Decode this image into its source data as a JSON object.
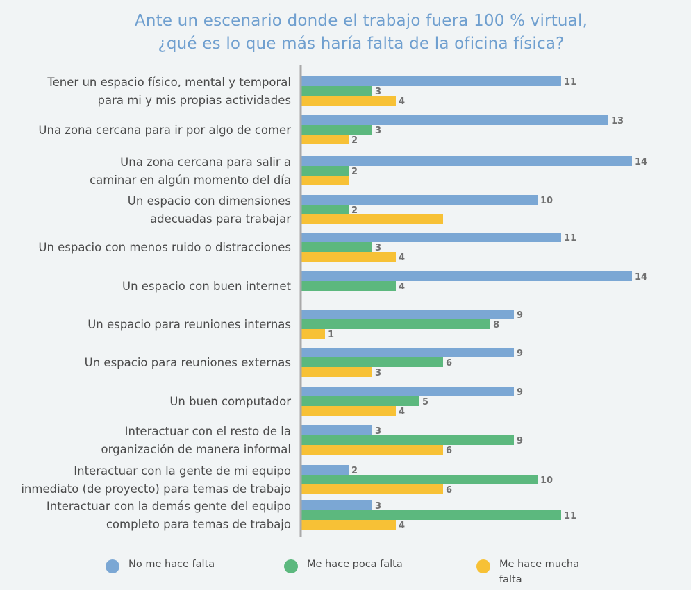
{
  "title": {
    "line1": "Ante un escenario donde el trabajo fuera 100 % virtual,",
    "line2": "¿qué es lo que más haría falta de la oficina física?"
  },
  "chart_data": {
    "type": "bar",
    "orientation": "horizontal",
    "title": "Ante un escenario donde el trabajo fuera 100 % virtual, ¿qué es lo que más haría falta de la oficina física?",
    "categories": [
      [
        "Tener un espacio físico, mental y temporal",
        "para mi y mis propias actividades"
      ],
      [
        "Una zona cercana para ir por algo de comer"
      ],
      [
        "Una zona cercana para salir a",
        "caminar en algún momento del día"
      ],
      [
        "Un espacio con dimensiones",
        "adecuadas para trabajar"
      ],
      [
        "Un espacio con menos ruido o distracciones"
      ],
      [
        "Un espacio con buen internet"
      ],
      [
        "Un espacio para reuniones internas"
      ],
      [
        "Un espacio para reuniones externas"
      ],
      [
        "Un buen computador"
      ],
      [
        "Interactuar con el resto de la",
        "organización de manera informal"
      ],
      [
        "Interactuar con la gente de mi equipo",
        "inmediato (de proyecto) para temas de trabajo"
      ],
      [
        "Interactuar con la demás gente del equipo",
        "completo para temas de trabajo"
      ]
    ],
    "series": [
      {
        "name": "No me hace falta",
        "color": "#7ba7d4",
        "values": [
          11,
          13,
          14,
          10,
          11,
          14,
          9,
          9,
          9,
          3,
          2,
          3
        ],
        "labels": [
          "11",
          "13",
          "14",
          "10",
          "11",
          "14",
          "9",
          "9",
          "9",
          "3",
          "2",
          "3"
        ]
      },
      {
        "name": "Me hace poca falta",
        "color": "#5cb87e",
        "values": [
          3,
          3,
          2,
          2,
          3,
          4,
          8,
          6,
          5,
          9,
          10,
          11
        ],
        "labels": [
          "3",
          "3",
          "2",
          "2",
          "3",
          "4",
          "8",
          "6",
          "5",
          "9",
          "10",
          "11"
        ]
      },
      {
        "name": "Me hace mucha falta",
        "color": "#f7c136",
        "values": [
          4,
          2,
          2,
          6,
          4,
          0,
          1,
          3,
          4,
          6,
          6,
          4
        ],
        "labels": [
          "4",
          "2",
          "",
          "",
          "4",
          "",
          "1",
          "3",
          "4",
          "6",
          "6",
          "4"
        ]
      }
    ],
    "xlim": [
      0,
      14
    ],
    "grid": false,
    "legend_position": "bottom"
  },
  "legend": {
    "items": [
      {
        "label_lines": [
          "No me hace falta"
        ],
        "color": "#7ba7d4"
      },
      {
        "label_lines": [
          "Me hace poca falta"
        ],
        "color": "#5cb87e"
      },
      {
        "label_lines": [
          "Me hace mucha",
          "falta"
        ],
        "color": "#f7c136"
      }
    ]
  }
}
